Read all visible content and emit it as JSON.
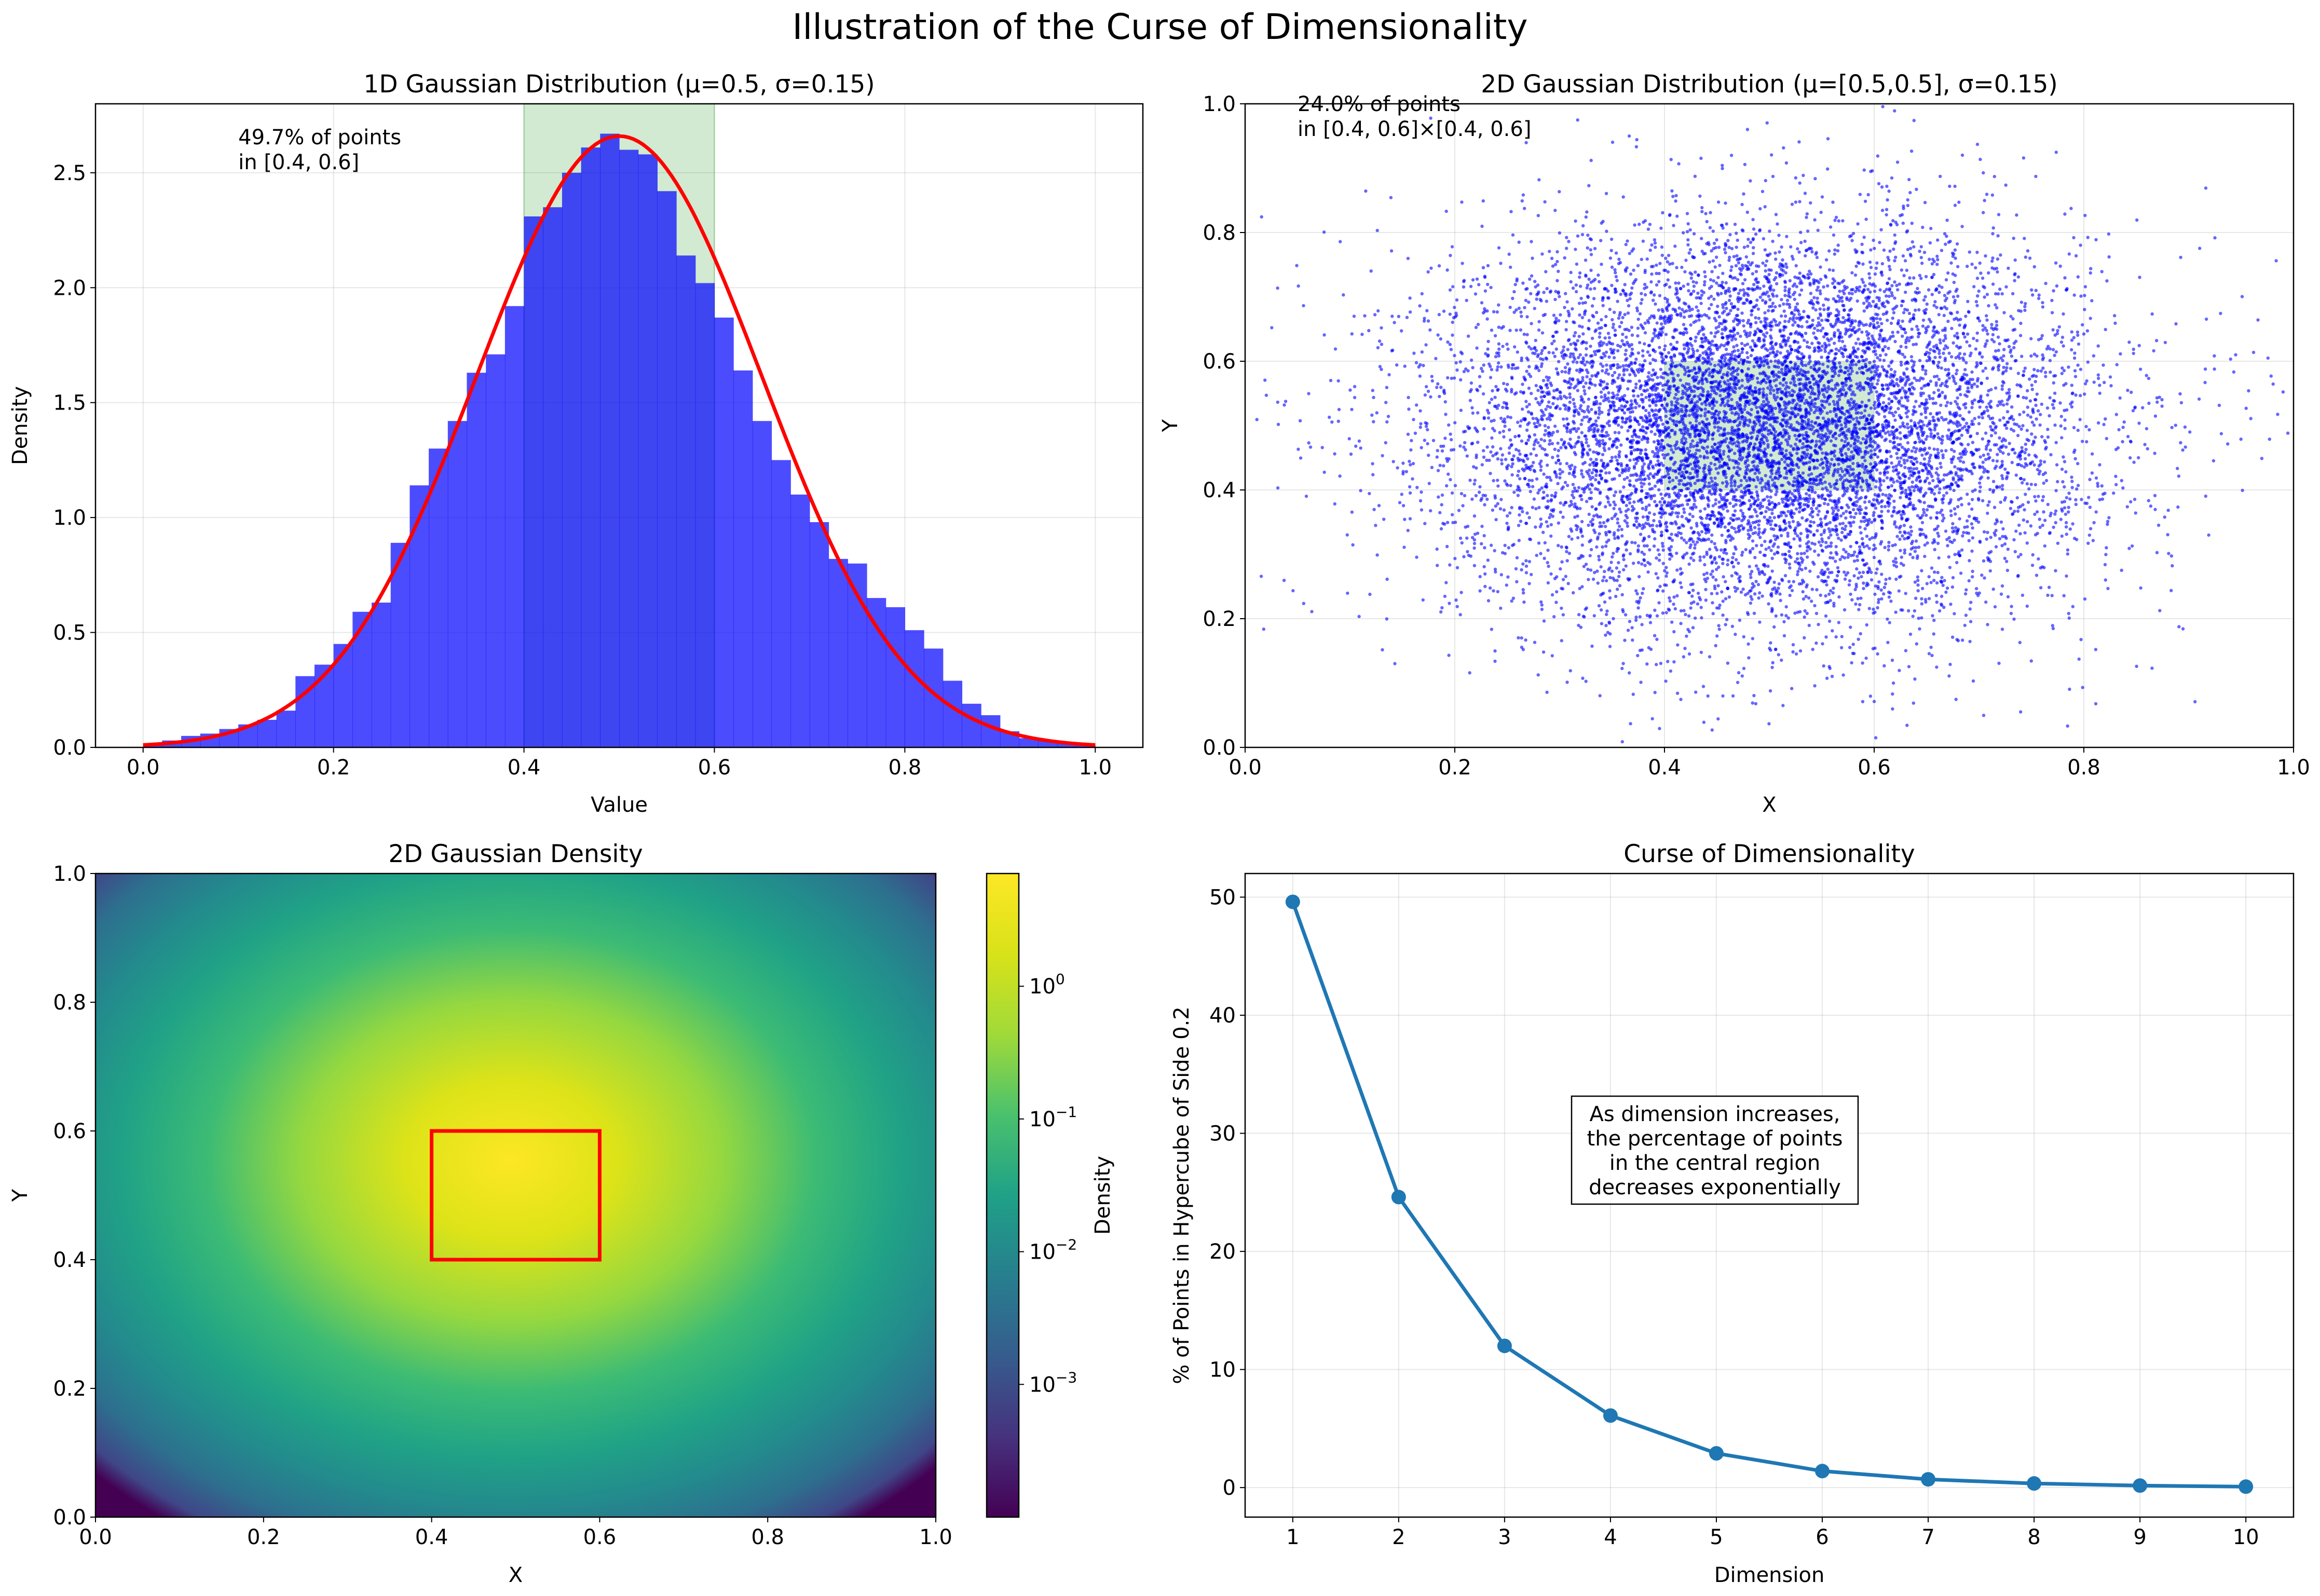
{
  "figure": {
    "title": "Illustration of the Curse of Dimensionality"
  },
  "chart_data": [
    {
      "type": "bar",
      "title": "1D Gaussian Distribution (μ=0.5, σ=0.15)",
      "xlabel": "Value",
      "ylabel": "Density",
      "xlim": [
        -0.05,
        1.05
      ],
      "ylim": [
        0,
        2.8
      ],
      "xticks": [
        "0.0",
        "0.2",
        "0.4",
        "0.6",
        "0.8",
        "1.0"
      ],
      "yticks": [
        "0.0",
        "0.5",
        "1.0",
        "1.5",
        "2.0",
        "2.5"
      ],
      "grid": true,
      "bin_width": 0.02,
      "bin_starts": [
        0.0,
        0.02,
        0.04,
        0.06,
        0.08,
        0.1,
        0.12,
        0.14,
        0.16,
        0.18,
        0.2,
        0.22,
        0.24,
        0.26,
        0.28,
        0.3,
        0.32,
        0.34,
        0.36,
        0.38,
        0.4,
        0.42,
        0.44,
        0.46,
        0.48,
        0.5,
        0.52,
        0.54,
        0.56,
        0.58,
        0.6,
        0.62,
        0.64,
        0.66,
        0.68,
        0.7,
        0.72,
        0.74,
        0.76,
        0.78,
        0.8,
        0.82,
        0.84,
        0.86,
        0.88,
        0.9,
        0.92,
        0.94,
        0.96,
        0.98
      ],
      "values": [
        0.01,
        0.03,
        0.05,
        0.06,
        0.08,
        0.1,
        0.12,
        0.16,
        0.31,
        0.36,
        0.45,
        0.59,
        0.63,
        0.89,
        1.14,
        1.3,
        1.42,
        1.63,
        1.71,
        1.92,
        2.31,
        2.35,
        2.5,
        2.61,
        2.67,
        2.6,
        2.58,
        2.42,
        2.14,
        2.02,
        1.87,
        1.64,
        1.42,
        1.25,
        1.1,
        0.98,
        0.82,
        0.8,
        0.65,
        0.61,
        0.51,
        0.43,
        0.29,
        0.19,
        0.14,
        0.07,
        0.04,
        0.03,
        0.02,
        0.01
      ],
      "bar_color": "#0000ff",
      "pdf_curve": {
        "mu": 0.5,
        "sigma": 0.15,
        "color": "#ff0000"
      },
      "highlight_range": [
        0.4,
        0.6
      ],
      "highlight_color": "#2ca02c",
      "annotation": [
        "49.7% of points",
        "in [0.4, 0.6]"
      ]
    },
    {
      "type": "scatter",
      "title": "2D Gaussian Distribution (μ=[0.5,0.5], σ=0.15)",
      "xlabel": "X",
      "ylabel": "Y",
      "xlim": [
        0,
        1
      ],
      "ylim": [
        0,
        1
      ],
      "xticks": [
        "0.0",
        "0.2",
        "0.4",
        "0.6",
        "0.8",
        "1.0"
      ],
      "yticks": [
        "0.0",
        "0.2",
        "0.4",
        "0.6",
        "0.8",
        "1.0"
      ],
      "grid": true,
      "distribution": {
        "mu": [
          0.5,
          0.5
        ],
        "sigma": 0.15
      },
      "point_color": "#0000ff",
      "highlight_box": {
        "x": [
          0.4,
          0.6
        ],
        "y": [
          0.4,
          0.6
        ]
      },
      "highlight_color": "#2ca02c",
      "annotation": [
        "24.0% of points",
        "in [0.4, 0.6]×[0.4, 0.6]"
      ]
    },
    {
      "type": "heatmap",
      "title": "2D Gaussian Density",
      "xlabel": "X",
      "ylabel": "Y",
      "xlim": [
        0,
        1
      ],
      "ylim": [
        0,
        1
      ],
      "xticks": [
        "0.0",
        "0.2",
        "0.4",
        "0.6",
        "0.8",
        "1.0"
      ],
      "yticks": [
        "0.0",
        "0.2",
        "0.4",
        "0.6",
        "0.8",
        "1.0"
      ],
      "colormap": "viridis",
      "colorbar": {
        "label": "Density",
        "scale": "log",
        "range": [
          0.0001,
          7.07
        ],
        "ticks": [
          {
            "base": "10",
            "exp": "0",
            "value": 1
          },
          {
            "base": "10",
            "exp": "−1",
            "value": 0.1
          },
          {
            "base": "10",
            "exp": "−2",
            "value": 0.01
          },
          {
            "base": "10",
            "exp": "−3",
            "value": 0.001
          }
        ]
      },
      "highlight_box": {
        "x": [
          0.4,
          0.6
        ],
        "y": [
          0.4,
          0.6
        ]
      },
      "highlight_color": "#ff0000"
    },
    {
      "type": "line",
      "title": "Curse of Dimensionality",
      "xlabel": "Dimension",
      "ylabel": "% of Points in Hypercube of Side 0.2",
      "xlim": [
        0.55,
        10.45
      ],
      "ylim": [
        -2.5,
        52
      ],
      "xticks": [
        "1",
        "2",
        "3",
        "4",
        "5",
        "6",
        "7",
        "8",
        "9",
        "10"
      ],
      "yticks": [
        "0",
        "10",
        "20",
        "30",
        "40",
        "50"
      ],
      "grid": true,
      "x": [
        1,
        2,
        3,
        4,
        5,
        6,
        7,
        8,
        9,
        10
      ],
      "values": [
        49.6,
        24.6,
        12.0,
        6.1,
        2.9,
        1.4,
        0.7,
        0.35,
        0.17,
        0.08
      ],
      "line_color": "#1f77b4",
      "annotation": [
        "As dimension increases,",
        "the percentage of points",
        "in the central region",
        "decreases exponentially"
      ]
    }
  ]
}
